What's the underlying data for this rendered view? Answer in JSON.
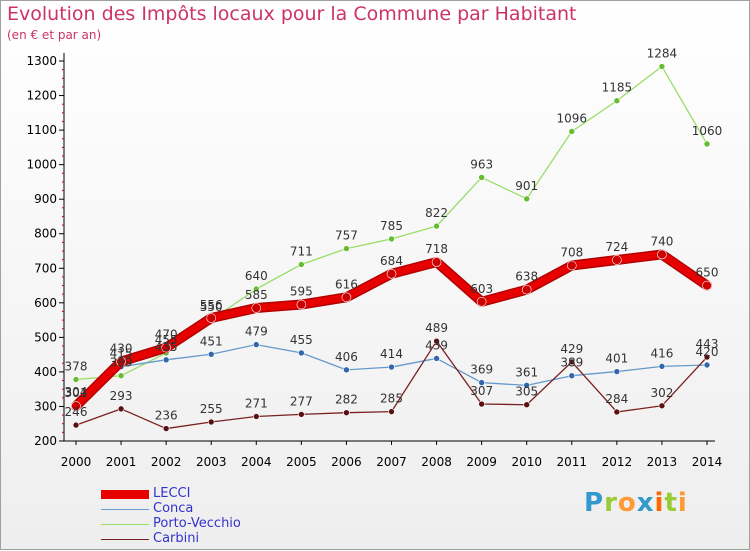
{
  "header": {
    "title": "Evolution des Impôts locaux pour la Commune par Habitant",
    "subtitle": "(en € et par an)"
  },
  "logo": {
    "text": "Proxiti",
    "letters": [
      "P",
      "r",
      "o",
      "x",
      "i",
      "t",
      "i"
    ]
  },
  "colors": {
    "title": "#cc3366",
    "legend_text": "#3333cc",
    "letter_colors": [
      "#3399cc",
      "#99cc33",
      "#ff9933",
      "#3399cc",
      "#ff6600",
      "#99cc33",
      "#ff9933"
    ]
  },
  "chart_data": {
    "type": "line",
    "title": "Evolution des Impôts locaux pour la Commune par Habitant",
    "subtitle": "(en € et par an)",
    "xlabel": "",
    "ylabel": "",
    "x": [
      "2000",
      "2001",
      "2002",
      "2003",
      "2004",
      "2005",
      "2006",
      "2007",
      "2008",
      "2009",
      "2010",
      "2011",
      "2012",
      "2013",
      "2014"
    ],
    "ylim": [
      200,
      1300
    ],
    "yticks": [
      200,
      300,
      400,
      500,
      600,
      700,
      800,
      900,
      1000,
      1100,
      1200,
      1300
    ],
    "grid": false,
    "legend_placement": "bottom-left",
    "series": [
      {
        "name": "LECCI",
        "color": "#e60000",
        "marker": "#cc0000",
        "values": [
          301,
          430,
          470,
          556,
          585,
          595,
          616,
          684,
          718,
          603,
          638,
          708,
          724,
          740,
          650
        ]
      },
      {
        "name": "Conca",
        "color": "#6699cc",
        "marker": "#3366aa",
        "values": [
          304,
          415,
          435,
          451,
          479,
          455,
          406,
          414,
          439,
          369,
          361,
          389,
          401,
          416,
          420
        ]
      },
      {
        "name": "Porto-Vecchio",
        "color": "#99dd66",
        "marker": "#66bb33",
        "values": [
          378,
          389,
          455,
          550,
          640,
          711,
          757,
          785,
          822,
          963,
          901,
          1096,
          1185,
          1284,
          1060
        ]
      },
      {
        "name": "Carbini",
        "color": "#7a2020",
        "marker": "#5a1010",
        "values": [
          246,
          293,
          236,
          255,
          271,
          277,
          282,
          285,
          489,
          307,
          305,
          429,
          284,
          302,
          443
        ]
      }
    ],
    "data_labels": {
      "LECCI": [
        "301",
        "430",
        "470",
        "556",
        "585",
        "595",
        "616",
        "684",
        "718",
        "603",
        "638",
        "708",
        "724",
        "740",
        "650"
      ],
      "Conca": [
        "304",
        "415",
        "435",
        "451",
        "479",
        "455",
        "406",
        "414",
        "439",
        "369",
        "361",
        "389",
        "401",
        "416",
        "420"
      ],
      "Porto-Vecchio": [
        "378",
        "389",
        "455",
        "550",
        "640",
        "711",
        "757",
        "785",
        "822",
        "963",
        "901",
        "1096",
        "1185",
        "1284",
        "1060"
      ],
      "Carbini": [
        "246",
        "293",
        "236",
        "255",
        "271",
        "277",
        "282",
        "285",
        "489",
        "307",
        "305",
        "429",
        "284",
        "302",
        "443"
      ]
    }
  }
}
